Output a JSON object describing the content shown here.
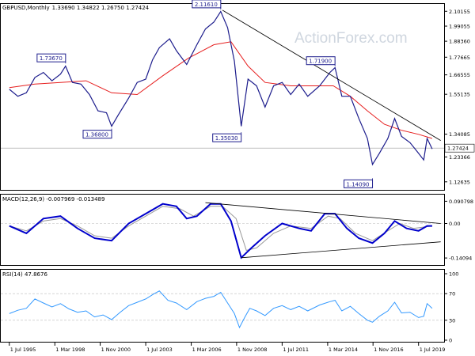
{
  "header": {
    "symbol": "GBPUSD,Monthly",
    "ohlc": "1.33690 1.34822 1.26750 1.27424"
  },
  "watermark": "ActionForex.com",
  "colors": {
    "price": "#1c1c8c",
    "ma": "#e61e1e",
    "trendline": "#000000",
    "macd": "#0000cc",
    "signal": "#999999",
    "rsi": "#3399ff",
    "frame": "#000000"
  },
  "chart_data": [
    {
      "type": "line",
      "panel": "price",
      "title": "GBPUSD,Monthly 1.33690 1.34822 1.26750 1.27424",
      "y_ticks": [
        2.10155,
        1.99055,
        1.8836,
        1.77665,
        1.66555,
        1.55135,
        1.34085,
        1.23366,
        1.12635
      ],
      "y_tick_labels": [
        "2.10155",
        "1.99055",
        "1.88360",
        "1.77665",
        "1.66555",
        "1.55135",
        "1.34085",
        "1.23366",
        "1.12635"
      ],
      "current_price_label": "1.27424",
      "current_price": 1.27424,
      "annotations": [
        {
          "text": "2.11610",
          "x": 2007.9,
          "y": 2.1161
        },
        {
          "text": "1.73670",
          "x": 1998.8,
          "y": 1.7367
        },
        {
          "text": "1.36800",
          "x": 2001.5,
          "y": 1.368
        },
        {
          "text": "1.35030",
          "x": 2009.1,
          "y": 1.3503
        },
        {
          "text": "1.71900",
          "x": 2014.6,
          "y": 1.719
        },
        {
          "text": "1.14090",
          "x": 2016.8,
          "y": 1.1409
        }
      ],
      "series": [
        {
          "values": [
            [
              1995.5,
              1.58
            ],
            [
              1996.0,
              1.54
            ],
            [
              1996.5,
              1.56
            ],
            [
              1997.0,
              1.65
            ],
            [
              1997.5,
              1.68
            ],
            [
              1998.0,
              1.63
            ],
            [
              1998.5,
              1.67
            ],
            [
              1998.8,
              1.72
            ],
            [
              1999.2,
              1.62
            ],
            [
              1999.7,
              1.61
            ],
            [
              2000.2,
              1.55
            ],
            [
              2000.7,
              1.46
            ],
            [
              2001.2,
              1.45
            ],
            [
              2001.5,
              1.38
            ],
            [
              2001.9,
              1.44
            ],
            [
              2002.5,
              1.53
            ],
            [
              2003.0,
              1.62
            ],
            [
              2003.5,
              1.64
            ],
            [
              2003.9,
              1.76
            ],
            [
              2004.3,
              1.84
            ],
            [
              2004.9,
              1.9
            ],
            [
              2005.3,
              1.82
            ],
            [
              2005.9,
              1.73
            ],
            [
              2006.5,
              1.86
            ],
            [
              2007.0,
              1.97
            ],
            [
              2007.5,
              2.02
            ],
            [
              2007.9,
              2.1
            ],
            [
              2008.3,
              1.98
            ],
            [
              2008.7,
              1.75
            ],
            [
              2009.1,
              1.38
            ],
            [
              2009.5,
              1.64
            ],
            [
              2010.0,
              1.6
            ],
            [
              2010.5,
              1.48
            ],
            [
              2011.0,
              1.6
            ],
            [
              2011.5,
              1.62
            ],
            [
              2012.0,
              1.55
            ],
            [
              2012.5,
              1.61
            ],
            [
              2013.0,
              1.54
            ],
            [
              2013.7,
              1.6
            ],
            [
              2014.3,
              1.68
            ],
            [
              2014.6,
              1.71
            ],
            [
              2015.0,
              1.54
            ],
            [
              2015.5,
              1.54
            ],
            [
              2016.0,
              1.42
            ],
            [
              2016.5,
              1.32
            ],
            [
              2016.8,
              1.2
            ],
            [
              2017.2,
              1.25
            ],
            [
              2017.7,
              1.32
            ],
            [
              2018.1,
              1.42
            ],
            [
              2018.5,
              1.33
            ],
            [
              2019.0,
              1.3
            ],
            [
              2019.5,
              1.25
            ],
            [
              2019.8,
              1.22
            ],
            [
              2020.0,
              1.32
            ],
            [
              2020.3,
              1.27
            ]
          ]
        },
        {
          "values": [
            [
              1995.5,
              1.59
            ],
            [
              1997.0,
              1.61
            ],
            [
              1998.5,
              1.62
            ],
            [
              2000.0,
              1.63
            ],
            [
              2001.5,
              1.56
            ],
            [
              2003.0,
              1.55
            ],
            [
              2004.5,
              1.66
            ],
            [
              2006.0,
              1.77
            ],
            [
              2007.5,
              1.86
            ],
            [
              2008.5,
              1.88
            ],
            [
              2009.5,
              1.72
            ],
            [
              2010.5,
              1.62
            ],
            [
              2012.0,
              1.6
            ],
            [
              2013.5,
              1.6
            ],
            [
              2014.5,
              1.6
            ],
            [
              2015.5,
              1.54
            ],
            [
              2016.5,
              1.46
            ],
            [
              2017.5,
              1.39
            ],
            [
              2018.5,
              1.36
            ],
            [
              2019.5,
              1.34
            ],
            [
              2020.3,
              1.32
            ]
          ]
        },
        {
          "values": [
            [
              2008.0,
              2.11
            ],
            [
              2020.8,
              1.31
            ]
          ]
        }
      ]
    },
    {
      "type": "line",
      "panel": "macd",
      "title": "MACD(12,26,9) -0.007969 -0.013489",
      "y_ticks": [
        0.090798,
        0.0,
        -0.14094
      ],
      "y_tick_labels": [
        "0.090798",
        "0.00",
        "-0.14094"
      ],
      "series": [
        {
          "values": [
            [
              1995.5,
              -0.01
            ],
            [
              1996.5,
              -0.04
            ],
            [
              1997.5,
              0.02
            ],
            [
              1998.5,
              0.03
            ],
            [
              1999.5,
              -0.02
            ],
            [
              2000.5,
              -0.06
            ],
            [
              2001.5,
              -0.07
            ],
            [
              2002.5,
              0.0
            ],
            [
              2003.5,
              0.04
            ],
            [
              2004.5,
              0.08
            ],
            [
              2005.3,
              0.07
            ],
            [
              2005.9,
              0.02
            ],
            [
              2006.5,
              0.03
            ],
            [
              2007.3,
              0.08
            ],
            [
              2007.9,
              0.08
            ],
            [
              2008.5,
              0.01
            ],
            [
              2009.1,
              -0.14
            ],
            [
              2009.7,
              -0.1
            ],
            [
              2010.5,
              -0.05
            ],
            [
              2011.5,
              0.0
            ],
            [
              2012.5,
              -0.02
            ],
            [
              2013.2,
              -0.03
            ],
            [
              2014.0,
              0.04
            ],
            [
              2014.6,
              0.04
            ],
            [
              2015.3,
              -0.02
            ],
            [
              2016.0,
              -0.06
            ],
            [
              2016.8,
              -0.08
            ],
            [
              2017.5,
              -0.04
            ],
            [
              2018.1,
              0.01
            ],
            [
              2018.8,
              -0.02
            ],
            [
              2019.5,
              -0.03
            ],
            [
              2020.0,
              -0.01
            ],
            [
              2020.3,
              -0.01
            ]
          ]
        },
        {
          "values": [
            [
              1995.5,
              -0.01
            ],
            [
              1996.5,
              -0.03
            ],
            [
              1997.5,
              0.01
            ],
            [
              1998.5,
              0.02
            ],
            [
              1999.5,
              -0.01
            ],
            [
              2000.5,
              -0.05
            ],
            [
              2001.5,
              -0.06
            ],
            [
              2002.5,
              -0.01
            ],
            [
              2003.5,
              0.03
            ],
            [
              2004.5,
              0.07
            ],
            [
              2005.5,
              0.06
            ],
            [
              2006.3,
              0.03
            ],
            [
              2007.3,
              0.07
            ],
            [
              2008.0,
              0.07
            ],
            [
              2008.8,
              0.02
            ],
            [
              2009.4,
              -0.11
            ],
            [
              2010.0,
              -0.1
            ],
            [
              2011.0,
              -0.04
            ],
            [
              2012.0,
              -0.01
            ],
            [
              2013.2,
              -0.02
            ],
            [
              2014.2,
              0.03
            ],
            [
              2014.9,
              0.02
            ],
            [
              2015.8,
              -0.04
            ],
            [
              2016.8,
              -0.07
            ],
            [
              2017.7,
              -0.03
            ],
            [
              2018.4,
              0.0
            ],
            [
              2019.2,
              -0.02
            ],
            [
              2020.3,
              -0.01
            ]
          ]
        },
        {
          "values": [
            [
              2007.0,
              0.085
            ],
            [
              2020.8,
              0.0
            ]
          ]
        },
        {
          "values": [
            [
              2009.1,
              -0.14
            ],
            [
              2020.8,
              -0.075
            ]
          ]
        }
      ]
    },
    {
      "type": "line",
      "panel": "rsi",
      "title": "RSI(14) 47.8676",
      "y_ticks": [
        100,
        70,
        30,
        0
      ],
      "y_tick_labels": [
        "100",
        "70",
        "30",
        "0"
      ],
      "series": [
        {
          "values": [
            [
              1995.5,
              40
            ],
            [
              1996.0,
              45
            ],
            [
              1996.5,
              48
            ],
            [
              1997.0,
              62
            ],
            [
              1997.5,
              56
            ],
            [
              1998.0,
              50
            ],
            [
              1998.5,
              55
            ],
            [
              1999.0,
              47
            ],
            [
              1999.5,
              42
            ],
            [
              2000.0,
              44
            ],
            [
              2000.5,
              35
            ],
            [
              2001.0,
              38
            ],
            [
              2001.5,
              31
            ],
            [
              2002.0,
              42
            ],
            [
              2002.5,
              52
            ],
            [
              2003.0,
              57
            ],
            [
              2003.5,
              62
            ],
            [
              2004.0,
              70
            ],
            [
              2004.3,
              74
            ],
            [
              2004.8,
              60
            ],
            [
              2005.3,
              56
            ],
            [
              2005.9,
              46
            ],
            [
              2006.5,
              58
            ],
            [
              2007.0,
              63
            ],
            [
              2007.5,
              66
            ],
            [
              2007.9,
              72
            ],
            [
              2008.3,
              56
            ],
            [
              2008.7,
              40
            ],
            [
              2009.0,
              19
            ],
            [
              2009.3,
              34
            ],
            [
              2009.6,
              48
            ],
            [
              2010.0,
              44
            ],
            [
              2010.5,
              37
            ],
            [
              2011.0,
              48
            ],
            [
              2011.5,
              52
            ],
            [
              2012.0,
              46
            ],
            [
              2012.5,
              51
            ],
            [
              2013.0,
              44
            ],
            [
              2013.7,
              53
            ],
            [
              2014.3,
              58
            ],
            [
              2014.6,
              60
            ],
            [
              2015.0,
              44
            ],
            [
              2015.5,
              51
            ],
            [
              2016.0,
              40
            ],
            [
              2016.5,
              30
            ],
            [
              2016.8,
              27
            ],
            [
              2017.2,
              36
            ],
            [
              2017.7,
              44
            ],
            [
              2018.1,
              57
            ],
            [
              2018.5,
              41
            ],
            [
              2019.0,
              42
            ],
            [
              2019.5,
              34
            ],
            [
              2019.8,
              36
            ],
            [
              2020.0,
              55
            ],
            [
              2020.3,
              48
            ]
          ]
        }
      ]
    }
  ],
  "x_axis": {
    "labels": [
      "1 Jul 1995",
      "1 Mar 1998",
      "1 Nov 2000",
      "1 Jul 2003",
      "1 Mar 2006",
      "1 Nov 2008",
      "1 Jul 2011",
      "1 Mar 2014",
      "1 Nov 2016",
      "1 Jul 2019"
    ],
    "values": [
      1995.5,
      1998.17,
      2000.83,
      2003.5,
      2006.17,
      2008.83,
      2011.5,
      2014.17,
      2016.83,
      2019.5
    ]
  }
}
